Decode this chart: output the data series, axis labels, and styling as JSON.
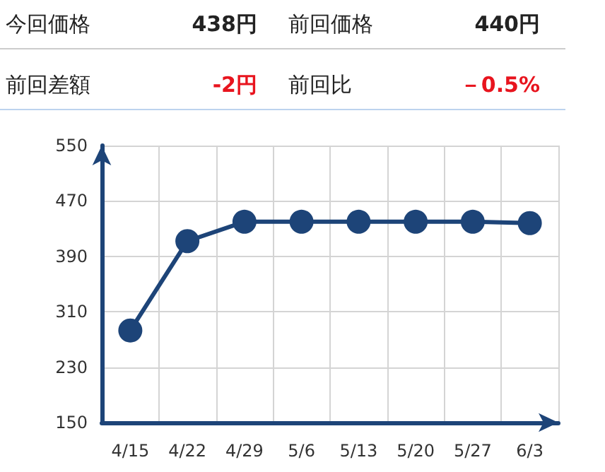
{
  "chart_data": {
    "type": "line",
    "annotations": [
      "今回価格",
      "438円",
      "前回価格",
      "440円",
      "前回差額",
      "-2円",
      "前回比",
      "－0.5%"
    ],
    "categories": [
      "4/15",
      "4/22",
      "4/29",
      "5/6",
      "5/13",
      "5/20",
      "5/27",
      "6/3"
    ],
    "series": [
      {
        "color": "#1d4478",
        "values": [
          283,
          412,
          440,
          440,
          440,
          440,
          440,
          438
        ]
      }
    ],
    "ylim": [
      150,
      550
    ],
    "yticks": [
      150,
      230,
      310,
      390,
      470,
      550
    ],
    "grid": true,
    "marker": "circle",
    "line_style": "solid"
  }
}
